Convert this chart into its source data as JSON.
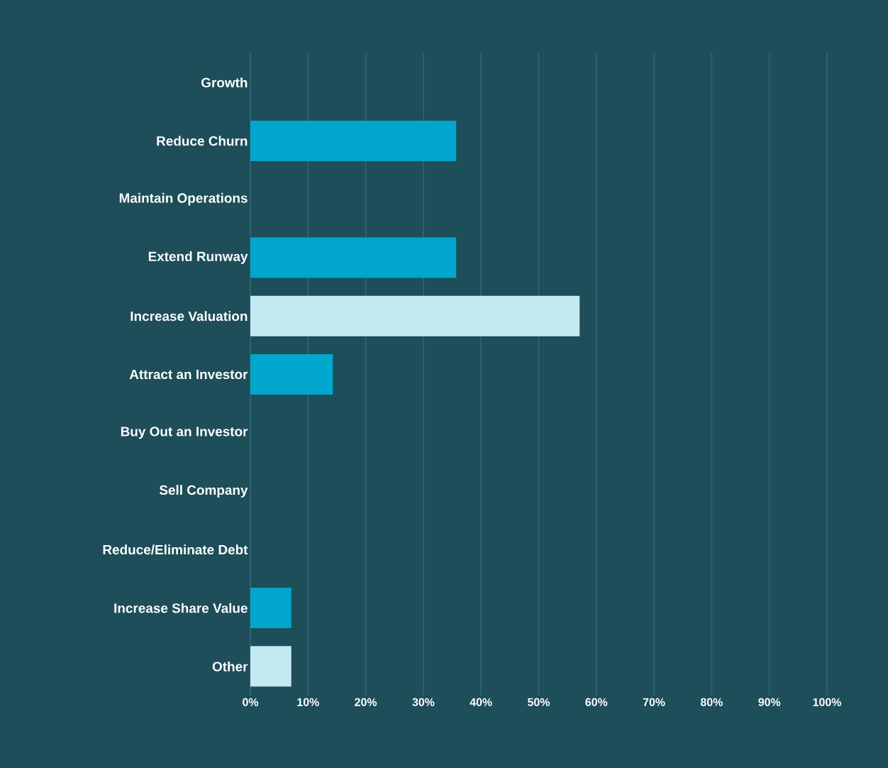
{
  "chart_data": {
    "type": "bar",
    "orientation": "horizontal",
    "categories": [
      "Growth",
      "Reduce Churn",
      "Maintain Operations",
      "Extend Runway",
      "Increase Valuation",
      "Attract an Investor",
      "Buy Out an Investor",
      "Sell Company",
      "Reduce/Eliminate Debt",
      "Increase Share Value",
      "Other"
    ],
    "values": [
      0,
      35.7,
      0,
      35.7,
      57.1,
      14.3,
      0,
      0,
      0,
      7.1,
      7.1
    ],
    "colors": [
      "#00a6cb",
      "#00a6cb",
      "#00a6cb",
      "#00a6cb",
      "#c5e9f0",
      "#00a6cb",
      "#00a6cb",
      "#00a6cb",
      "#00a6cb",
      "#00a6cb",
      "#c5e9f0"
    ],
    "xlim": [
      0,
      100
    ],
    "xticks": [
      {
        "value": 0,
        "label": "0%"
      },
      {
        "value": 10,
        "label": "10%"
      },
      {
        "value": 20,
        "label": "20%"
      },
      {
        "value": 30,
        "label": "30%"
      },
      {
        "value": 40,
        "label": "40%"
      },
      {
        "value": 50,
        "label": "50%"
      },
      {
        "value": 60,
        "label": "60%"
      },
      {
        "value": 70,
        "label": "70%"
      },
      {
        "value": 80,
        "label": "80%"
      },
      {
        "value": 90,
        "label": "90%"
      },
      {
        "value": 100,
        "label": "100%"
      }
    ],
    "grid": "x"
  }
}
